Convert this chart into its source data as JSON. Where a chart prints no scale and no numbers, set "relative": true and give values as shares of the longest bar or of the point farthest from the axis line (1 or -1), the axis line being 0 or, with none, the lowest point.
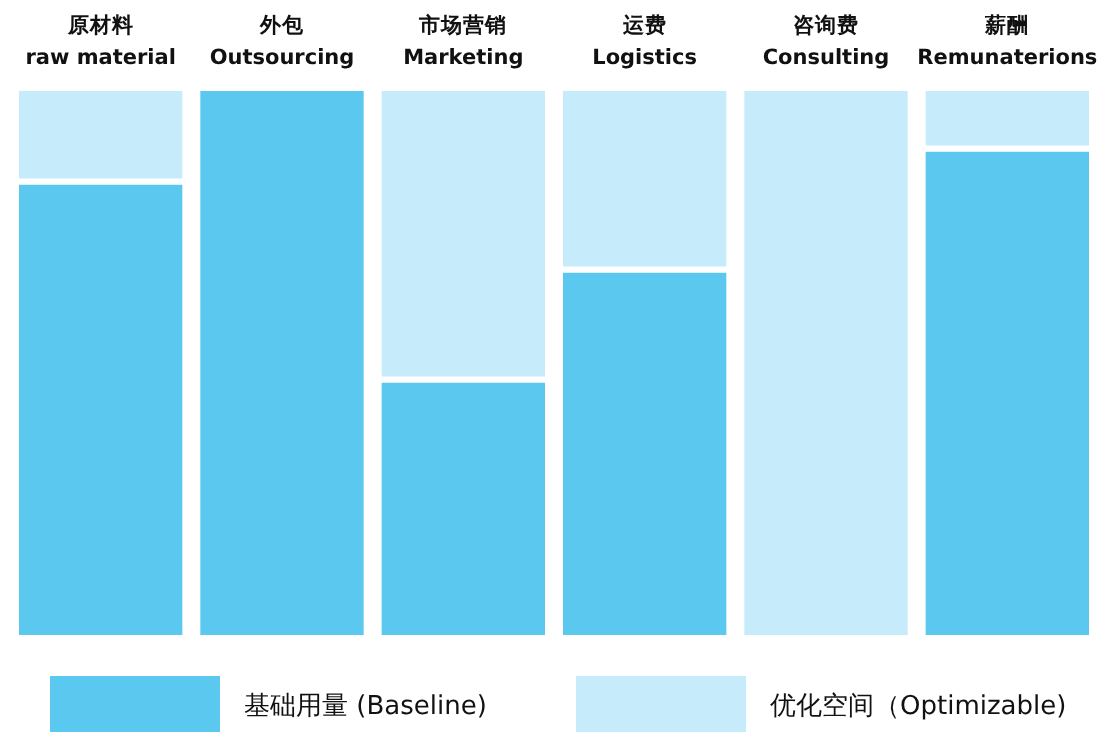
{
  "chart_data": {
    "type": "bar",
    "stacked": true,
    "relative": true,
    "legend": "bottom",
    "categories": [
      "原材料\nraw material",
      "外包\nOutsourcing",
      "市场营销\nMarketing",
      "运费\nLogistics",
      "咨询费\nConsulting",
      "薪酬\nRemunaterions"
    ],
    "series": [
      {
        "name": "基础用量 (Baseline)",
        "color": "#5bc8f0",
        "values": [
          0.83,
          1.0,
          0.47,
          0.67,
          0,
          0.89
        ]
      },
      {
        "name": "优化空间（Optimizable)",
        "color": "#c6ecfb",
        "values": [
          0.17,
          0,
          0.53,
          0.33,
          1.0,
          0.11
        ]
      }
    ]
  }
}
